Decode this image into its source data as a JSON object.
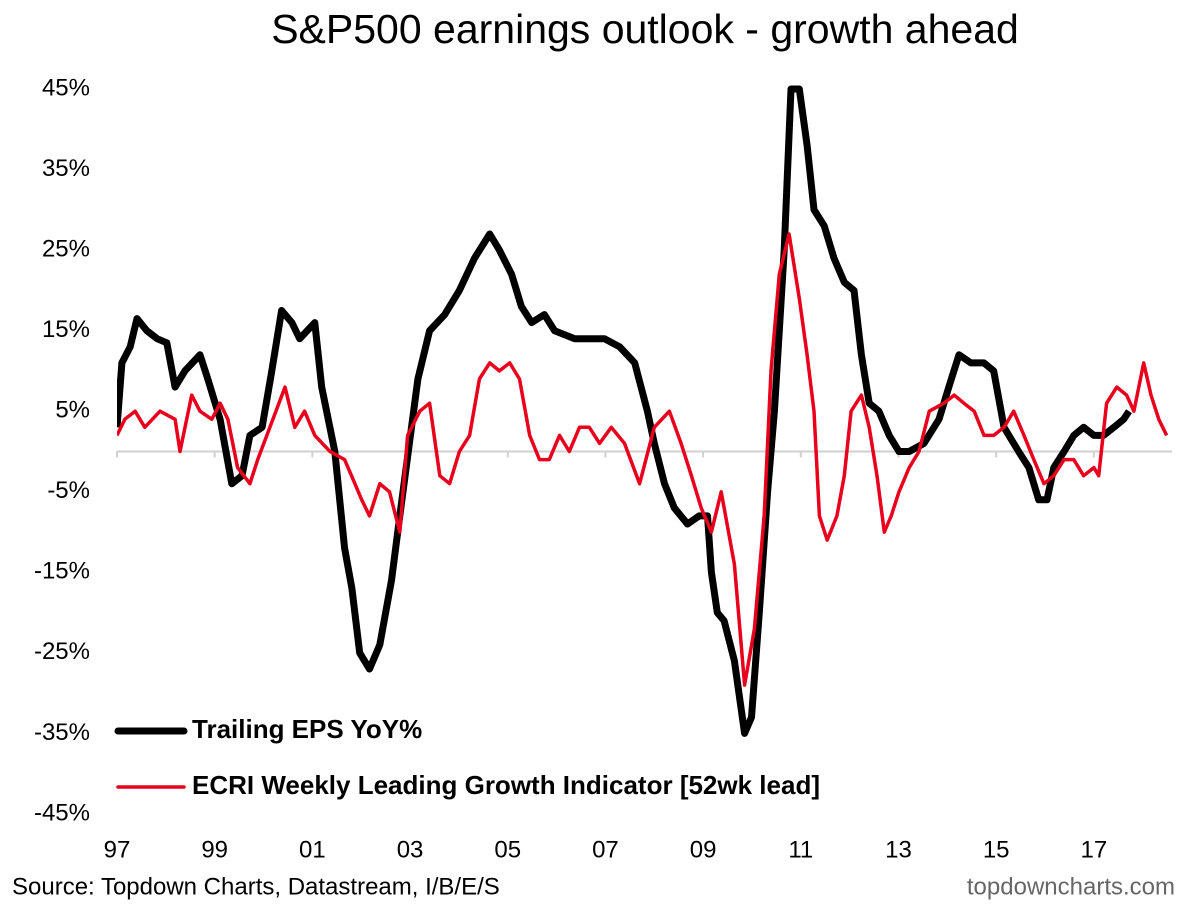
{
  "chart_data": {
    "type": "line",
    "title": "S&P500 earnings outlook - growth ahead",
    "source": "Source: Topdown Charts, Datastream, I/B/E/S",
    "watermark": "topdowncharts.com",
    "xlim": [
      1997,
      2018.6
    ],
    "xticks": [
      {
        "value": 1997,
        "label": "97"
      },
      {
        "value": 1999,
        "label": "99"
      },
      {
        "value": 2001,
        "label": "01"
      },
      {
        "value": 2003,
        "label": "03"
      },
      {
        "value": 2005,
        "label": "05"
      },
      {
        "value": 2007,
        "label": "07"
      },
      {
        "value": 2009,
        "label": "09"
      },
      {
        "value": 2011,
        "label": "11"
      },
      {
        "value": 2013,
        "label": "13"
      },
      {
        "value": 2015,
        "label": "15"
      },
      {
        "value": 2017,
        "label": "17"
      }
    ],
    "ylim": [
      -45,
      45
    ],
    "yticks": [
      {
        "value": 45,
        "label": "45%"
      },
      {
        "value": 35,
        "label": "35%"
      },
      {
        "value": 25,
        "label": "25%"
      },
      {
        "value": 15,
        "label": "15%"
      },
      {
        "value": 5,
        "label": "5%"
      },
      {
        "value": -5,
        "label": "-5%"
      },
      {
        "value": -15,
        "label": "-15%"
      },
      {
        "value": -25,
        "label": "-25%"
      },
      {
        "value": -35,
        "label": "-35%"
      },
      {
        "value": -45,
        "label": "-45%"
      }
    ],
    "legend": "lower-left",
    "series": [
      {
        "name": "Trailing EPS YoY%",
        "color": "#000000",
        "x": [
          1997.0,
          1997.1,
          1997.27,
          1997.41,
          1997.61,
          1997.82,
          1998.02,
          1998.19,
          1998.39,
          1998.7,
          1998.86,
          1999.11,
          1999.35,
          1999.56,
          1999.72,
          1999.97,
          2000.17,
          2000.37,
          2000.58,
          2000.74,
          2001.05,
          2001.19,
          2001.46,
          2001.66,
          2001.81,
          2001.97,
          2002.17,
          2002.38,
          2002.62,
          2002.79,
          2003.03,
          2003.16,
          2003.4,
          2003.71,
          2004.01,
          2004.32,
          2004.63,
          2004.83,
          2005.08,
          2005.28,
          2005.49,
          2005.75,
          2005.96,
          2006.37,
          2006.67,
          2006.98,
          2007.29,
          2007.6,
          2007.86,
          2008.0,
          2008.21,
          2008.41,
          2008.68,
          2008.92,
          2009.09,
          2009.17,
          2009.29,
          2009.43,
          2009.64,
          2009.85,
          2009.99,
          2010.15,
          2010.32,
          2010.46,
          2010.66,
          2010.8,
          2010.97,
          2011.13,
          2011.27,
          2011.48,
          2011.68,
          2011.89,
          2012.09,
          2012.24,
          2012.4,
          2012.6,
          2012.81,
          2013.01,
          2013.22,
          2013.52,
          2013.83,
          2014.03,
          2014.24,
          2014.48,
          2014.75,
          2014.95,
          2015.16,
          2015.46,
          2015.67,
          2015.87,
          2016.04,
          2016.18,
          2016.39,
          2016.59,
          2016.79,
          2017.0,
          2017.2,
          2017.41,
          2017.61,
          2017.72
        ],
        "values": [
          3,
          11,
          13,
          16.5,
          15,
          14,
          13.5,
          8,
          10,
          12,
          9,
          4,
          -4,
          -3,
          2,
          3,
          10,
          17.5,
          16,
          14,
          16,
          8,
          0,
          -12,
          -17,
          -25,
          -27,
          -24,
          -16,
          -8,
          3,
          9,
          15,
          17,
          20,
          24,
          27,
          25,
          22,
          18,
          16,
          17,
          15,
          14,
          14,
          14,
          13,
          11,
          5,
          1,
          -4,
          -7,
          -9,
          -8,
          -8,
          -15,
          -20,
          -21,
          -26,
          -35,
          -33,
          -20,
          -5,
          5,
          25,
          45,
          45,
          38,
          30,
          28,
          24,
          21,
          20,
          12,
          6,
          5,
          2,
          0,
          0,
          1,
          4,
          8,
          12,
          11,
          11,
          10,
          3,
          0,
          -2,
          -6,
          -6,
          -2,
          0,
          2,
          3,
          2,
          2,
          3,
          4,
          5
        ]
      },
      {
        "name": "ECRI Weekly Leading Growth Indicator [52wk lead]",
        "color": "#e8001c",
        "x": [
          1997.0,
          1997.16,
          1997.37,
          1997.57,
          1997.88,
          1998.19,
          1998.29,
          1998.53,
          1998.7,
          1998.94,
          1999.11,
          1999.27,
          1999.47,
          1999.72,
          1999.88,
          2000.13,
          2000.44,
          2000.64,
          2000.84,
          2001.05,
          2001.36,
          2001.66,
          2001.87,
          2002.01,
          2002.17,
          2002.38,
          2002.58,
          2002.79,
          2002.95,
          2003.2,
          2003.4,
          2003.61,
          2003.81,
          2004.01,
          2004.22,
          2004.42,
          2004.63,
          2004.83,
          2005.04,
          2005.24,
          2005.45,
          2005.65,
          2005.85,
          2006.06,
          2006.26,
          2006.47,
          2006.67,
          2006.88,
          2007.12,
          2007.39,
          2007.7,
          2008.0,
          2008.31,
          2008.55,
          2008.76,
          2008.96,
          2009.17,
          2009.37,
          2009.64,
          2009.85,
          2010.05,
          2010.25,
          2010.39,
          2010.56,
          2010.76,
          2010.97,
          2011.13,
          2011.27,
          2011.38,
          2011.54,
          2011.74,
          2011.89,
          2012.03,
          2012.24,
          2012.4,
          2012.56,
          2012.71,
          2012.85,
          2013.01,
          2013.22,
          2013.42,
          2013.63,
          2013.93,
          2014.14,
          2014.34,
          2014.55,
          2014.75,
          2014.95,
          2015.16,
          2015.36,
          2015.57,
          2015.77,
          2015.98,
          2016.18,
          2016.39,
          2016.59,
          2016.79,
          2017.0,
          2017.1,
          2017.26,
          2017.47,
          2017.67,
          2017.82,
          2018.02,
          2018.17,
          2018.33,
          2018.49
        ],
        "values": [
          2,
          4,
          5,
          3,
          5,
          4,
          0,
          7,
          5,
          4,
          6,
          4,
          -2,
          -4,
          -1,
          3,
          8,
          3,
          5,
          2,
          0,
          -1,
          -4,
          -6,
          -8,
          -4,
          -5,
          -10,
          2,
          5,
          6,
          -3,
          -4,
          0,
          2,
          9,
          11,
          10,
          11,
          9,
          2,
          -1,
          -1,
          2,
          0,
          3,
          3,
          1,
          3,
          1,
          -4,
          3,
          5,
          1,
          -3,
          -7,
          -10,
          -5,
          -14,
          -29,
          -22,
          -8,
          10,
          22,
          27,
          19,
          12,
          5,
          -8,
          -11,
          -8,
          -3,
          5,
          7,
          3,
          -3,
          -10,
          -8,
          -5,
          -2,
          0,
          5,
          6,
          7,
          6,
          5,
          2,
          2,
          3,
          5,
          2,
          -1,
          -4,
          -3,
          -1,
          -1,
          -3,
          -2,
          -3,
          6,
          8,
          7,
          5,
          11,
          7,
          4,
          2
        ]
      }
    ]
  }
}
